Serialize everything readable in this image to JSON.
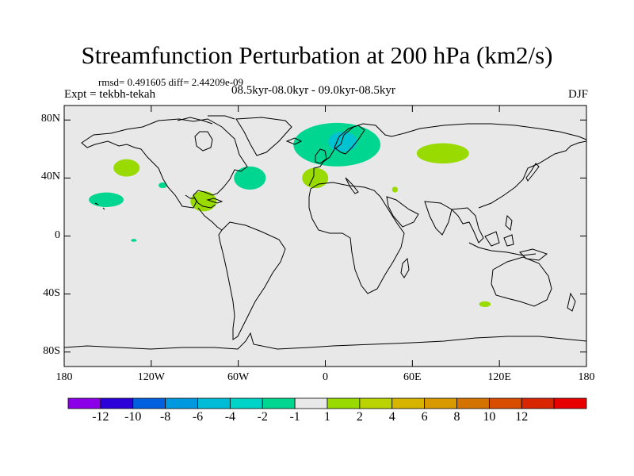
{
  "title": "Streamfunction Perturbation at 200 hPa (km2/s)",
  "stats_text": "rmsd= 0.491605 diff= 2.44209e-09",
  "experiment_text": "Expt = tekbh-tekah",
  "period_text": "08.5kyr-08.0kyr - 09.0kyr-08.5kyr",
  "season_text": "DJF",
  "map": {
    "projection": "cylindrical-equidistant",
    "lon_range": [
      -180,
      180
    ],
    "lat_range": [
      -90,
      90
    ],
    "background_color": "#e8e8e8",
    "lat_ticks": [
      {
        "value": 80,
        "label": "80N"
      },
      {
        "value": 40,
        "label": "40N"
      },
      {
        "value": 0,
        "label": "0"
      },
      {
        "value": -40,
        "label": "40S"
      },
      {
        "value": -80,
        "label": "80S"
      }
    ],
    "lon_ticks": [
      {
        "value": -180,
        "label": "180"
      },
      {
        "value": -120,
        "label": "120W"
      },
      {
        "value": -60,
        "label": "60W"
      },
      {
        "value": 0,
        "label": "0"
      },
      {
        "value": 60,
        "label": "60E"
      },
      {
        "value": 120,
        "label": "120E"
      },
      {
        "value": 180,
        "label": "180"
      }
    ],
    "anomalies": [
      {
        "name": "north-atlantic-scandinavia-low",
        "lon": 8,
        "lat": 63,
        "rx_deg": 30,
        "ry_deg": 15,
        "color": "#00d68f"
      },
      {
        "name": "scandinavia-core-low",
        "lon": 12,
        "lat": 65,
        "rx_deg": 10,
        "ry_deg": 7,
        "color": "#00c3d1"
      },
      {
        "name": "siberia-high",
        "lon": 81,
        "lat": 57,
        "rx_deg": 18,
        "ry_deg": 7,
        "color": "#99db00"
      },
      {
        "name": "north-pacific-high",
        "lon": -137,
        "lat": 47,
        "rx_deg": 9,
        "ry_deg": 6,
        "color": "#99db00"
      },
      {
        "name": "east-pacific-low",
        "lon": -151,
        "lat": 25,
        "rx_deg": 12,
        "ry_deg": 5,
        "color": "#00d68f"
      },
      {
        "name": "sw-us-low",
        "lon": -112,
        "lat": 35,
        "rx_deg": 3,
        "ry_deg": 2,
        "color": "#00d68f"
      },
      {
        "name": "western-atlantic-low",
        "lon": -52,
        "lat": 40,
        "rx_deg": 11,
        "ry_deg": 8,
        "color": "#00d68f"
      },
      {
        "name": "gulf-of-mexico-high",
        "lon": -84,
        "lat": 24,
        "rx_deg": 9,
        "ry_deg": 7,
        "color": "#99db00"
      },
      {
        "name": "iberia-high",
        "lon": -7,
        "lat": 40,
        "rx_deg": 9,
        "ry_deg": 7,
        "color": "#99db00"
      },
      {
        "name": "red-sea-high",
        "lon": 48,
        "lat": 32,
        "rx_deg": 2,
        "ry_deg": 2,
        "color": "#99db00"
      },
      {
        "name": "tropical-pacific-low",
        "lon": -132,
        "lat": -3,
        "rx_deg": 2,
        "ry_deg": 1,
        "color": "#00d68f"
      },
      {
        "name": "southern-indian-high",
        "lon": 110,
        "lat": -47,
        "rx_deg": 4,
        "ry_deg": 2,
        "color": "#99db00"
      }
    ]
  },
  "colorbar": {
    "colors": [
      "#8b00e8",
      "#2b00d9",
      "#0060e0",
      "#0099e0",
      "#00bcd6",
      "#00d3c8",
      "#00d68f",
      "#e8e8e8",
      "#99db00",
      "#b9d400",
      "#d7b400",
      "#d99a00",
      "#d57300",
      "#d94d00",
      "#d92500",
      "#e80000"
    ],
    "labels": [
      "-12",
      "-10",
      "-8",
      "-6",
      "-4",
      "-2",
      "-1",
      "1",
      "2",
      "4",
      "6",
      "8",
      "10",
      "12"
    ]
  }
}
